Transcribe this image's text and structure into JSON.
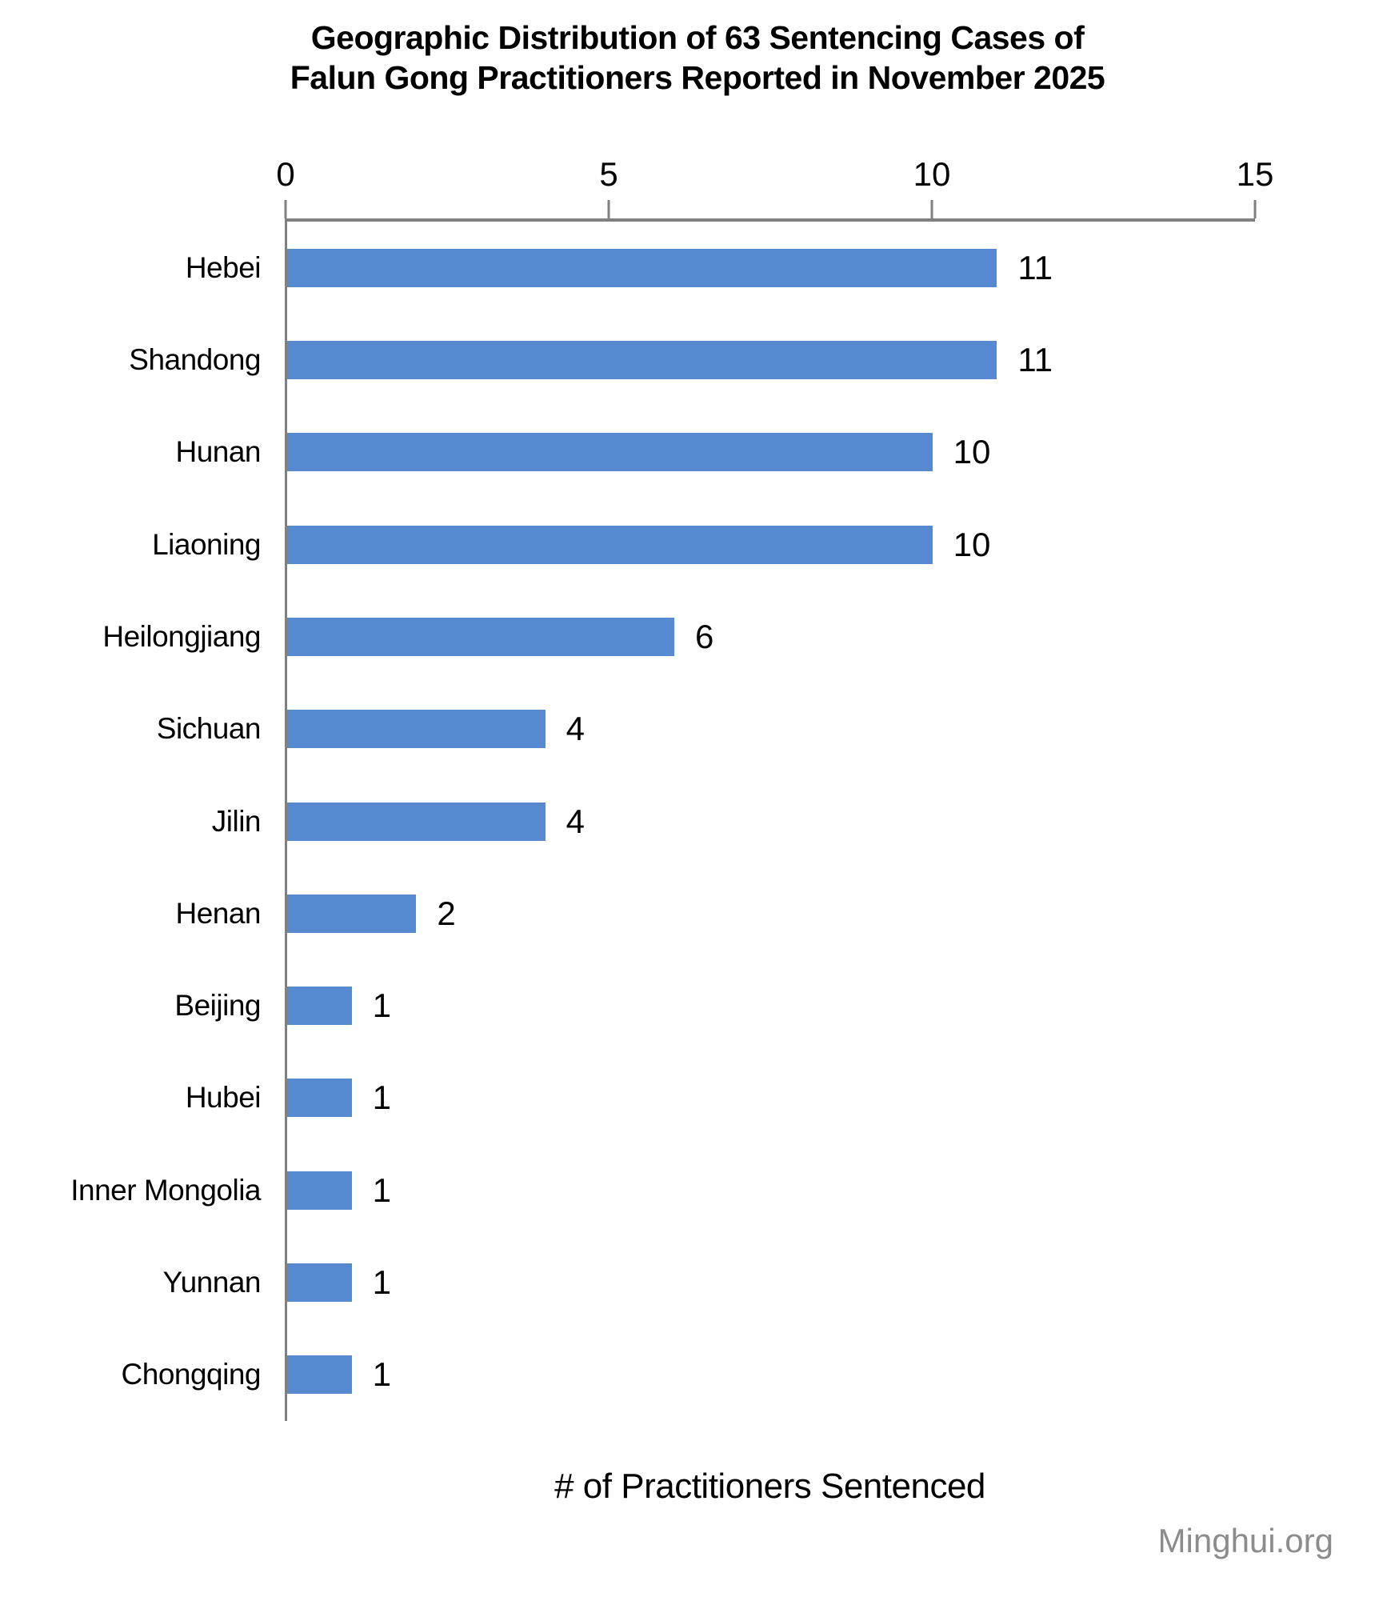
{
  "title": {
    "line1": "Geographic Distribution of 63 Sentencing Cases of",
    "line2": "Falun Gong Practitioners Reported in November 2025"
  },
  "chart_data": {
    "type": "bar",
    "orientation": "horizontal",
    "title": "Geographic Distribution of 63 Sentencing Cases of Falun Gong Practitioners Reported in November 2025",
    "categories": [
      "Hebei",
      "Shandong",
      "Hunan",
      "Liaoning",
      "Heilongjiang",
      "Sichuan",
      "Jilin",
      "Henan",
      "Beijing",
      "Hubei",
      "Inner Mongolia",
      "Yunnan",
      "Chongqing"
    ],
    "values": [
      11,
      11,
      10,
      10,
      6,
      4,
      4,
      2,
      1,
      1,
      1,
      1,
      1
    ],
    "data_labels": [
      11,
      11,
      10,
      10,
      6,
      4,
      4,
      2,
      1,
      1,
      1,
      1,
      1
    ],
    "xlabel": "# of Practitioners Sentenced",
    "ylabel": "",
    "xlim": [
      0,
      15
    ],
    "xticks": [
      0,
      5,
      10,
      15
    ],
    "xaxis_position": "top",
    "grid": false,
    "legend": false,
    "bar_color": "#5789D0",
    "axis_color": "#808080",
    "total_cases": 63
  },
  "footer": {
    "credit": "Minghui.org",
    "credit_color": "#8C8C8C"
  }
}
